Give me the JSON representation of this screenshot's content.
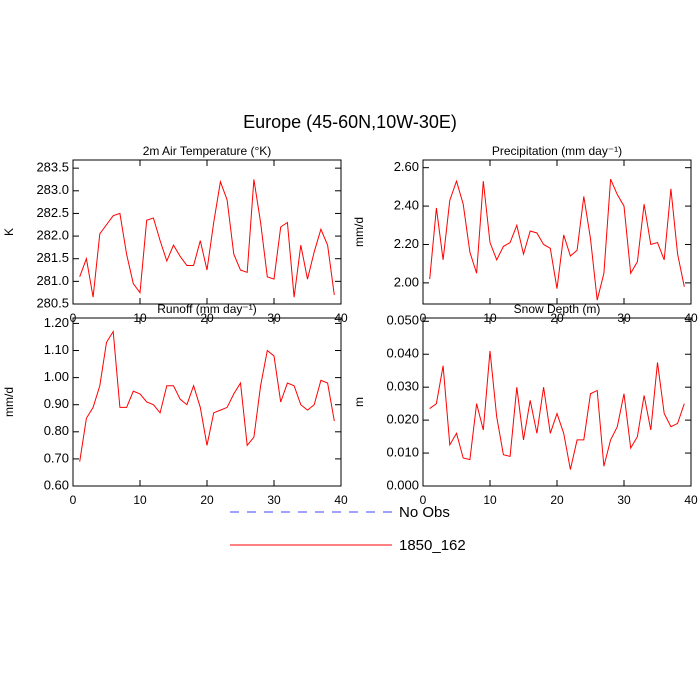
{
  "title": "Europe (45-60N,10W-30E)",
  "legend": [
    {
      "name": "No Obs",
      "color": "#4040ff",
      "dashed": true
    },
    {
      "name": "1850_162",
      "color": "#ff0000",
      "dashed": false
    }
  ],
  "chart_data": [
    {
      "type": "line",
      "title": "2m Air Temperature (°K)",
      "y_label": "K",
      "color": "#ff0000",
      "x": [
        1,
        2,
        3,
        4,
        5,
        6,
        7,
        8,
        9,
        10,
        11,
        12,
        13,
        14,
        15,
        16,
        17,
        18,
        19,
        20,
        21,
        22,
        23,
        24,
        25,
        26,
        27,
        28,
        29,
        30,
        31,
        32,
        33,
        34,
        35,
        36,
        37,
        38,
        39
      ],
      "values": [
        281.1,
        281.5,
        280.65,
        282.05,
        282.25,
        282.45,
        282.5,
        281.6,
        280.95,
        280.75,
        282.35,
        282.4,
        281.9,
        281.45,
        281.8,
        281.55,
        281.35,
        281.35,
        281.9,
        281.25,
        282.3,
        283.2,
        282.8,
        281.6,
        281.25,
        281.2,
        283.25,
        282.3,
        281.1,
        281.05,
        282.2,
        282.3,
        280.65,
        281.8,
        281.05,
        281.65,
        282.15,
        281.8,
        280.7
      ],
      "xlim": [
        0,
        40
      ],
      "xticks": [
        0,
        10,
        20,
        30,
        40
      ],
      "ylim": [
        280.5,
        283.68
      ],
      "yticks": [
        {
          "value": 280.5,
          "label": "280.5"
        },
        {
          "value": 281,
          "label": "281.0"
        },
        {
          "value": 281.5,
          "label": "281.5"
        },
        {
          "value": 282,
          "label": "282.0"
        },
        {
          "value": 282.5,
          "label": "282.5"
        },
        {
          "value": 283,
          "label": "283.0"
        },
        {
          "value": 283.5,
          "label": "283.5"
        }
      ]
    },
    {
      "type": "line",
      "title": "Precipitation (mm day⁻¹)",
      "y_label": "mm/d",
      "color": "#ff0000",
      "x": [
        1,
        2,
        3,
        4,
        5,
        6,
        7,
        8,
        9,
        10,
        11,
        12,
        13,
        14,
        15,
        16,
        17,
        18,
        19,
        20,
        21,
        22,
        23,
        24,
        25,
        26,
        27,
        28,
        29,
        30,
        31,
        32,
        33,
        34,
        35,
        36,
        37,
        38,
        39
      ],
      "values": [
        2.02,
        2.39,
        2.12,
        2.43,
        2.53,
        2.41,
        2.16,
        2.05,
        2.53,
        2.21,
        2.12,
        2.19,
        2.21,
        2.3,
        2.15,
        2.27,
        2.26,
        2.2,
        2.18,
        1.97,
        2.25,
        2.14,
        2.17,
        2.45,
        2.23,
        1.91,
        2.05,
        2.54,
        2.46,
        2.4,
        2.05,
        2.11,
        2.41,
        2.2,
        2.21,
        2.12,
        2.49,
        2.15,
        1.98
      ],
      "xlim": [
        0,
        40
      ],
      "xticks": [
        0,
        10,
        20,
        30,
        40
      ],
      "ylim": [
        1.89,
        2.64
      ],
      "yticks": [
        {
          "value": 2,
          "label": "2.00"
        },
        {
          "value": 2.2,
          "label": "2.20"
        },
        {
          "value": 2.4,
          "label": "2.40"
        },
        {
          "value": 2.6,
          "label": "2.60"
        }
      ]
    },
    {
      "type": "line",
      "title": "Runoff (mm day⁻¹)",
      "y_label": "mm/d",
      "color": "#ff0000",
      "x": [
        1,
        2,
        3,
        4,
        5,
        6,
        7,
        8,
        9,
        10,
        11,
        12,
        13,
        14,
        15,
        16,
        17,
        18,
        19,
        20,
        21,
        22,
        23,
        24,
        25,
        26,
        27,
        28,
        29,
        30,
        31,
        32,
        33,
        34,
        35,
        36,
        37,
        38,
        39
      ],
      "values": [
        0.69,
        0.85,
        0.89,
        0.97,
        1.13,
        1.17,
        0.89,
        0.89,
        0.95,
        0.94,
        0.91,
        0.9,
        0.87,
        0.97,
        0.97,
        0.92,
        0.9,
        0.97,
        0.89,
        0.75,
        0.87,
        0.88,
        0.89,
        0.94,
        0.98,
        0.75,
        0.78,
        0.97,
        1.1,
        1.08,
        0.91,
        0.98,
        0.97,
        0.9,
        0.88,
        0.9,
        0.99,
        0.98,
        0.84
      ],
      "xlim": [
        0,
        40
      ],
      "xticks": [
        0,
        10,
        20,
        30,
        40
      ],
      "ylim": [
        0.6,
        1.22
      ],
      "yticks": [
        {
          "value": 0.6,
          "label": "0.60"
        },
        {
          "value": 0.7,
          "label": "0.70"
        },
        {
          "value": 0.8,
          "label": "0.80"
        },
        {
          "value": 0.9,
          "label": "0.90"
        },
        {
          "value": 1,
          "label": "1.00"
        },
        {
          "value": 1.1,
          "label": "1.10"
        },
        {
          "value": 1.2,
          "label": "1.20"
        }
      ]
    },
    {
      "type": "line",
      "title": "Snow Depth (m)",
      "y_label": "m",
      "color": "#ff0000",
      "x": [
        1,
        2,
        3,
        4,
        5,
        6,
        7,
        8,
        9,
        10,
        11,
        12,
        13,
        14,
        15,
        16,
        17,
        18,
        19,
        20,
        21,
        22,
        23,
        24,
        25,
        26,
        27,
        28,
        29,
        30,
        31,
        32,
        33,
        34,
        35,
        36,
        37,
        38,
        39
      ],
      "values": [
        0.0235,
        0.025,
        0.0365,
        0.0125,
        0.016,
        0.0085,
        0.008,
        0.025,
        0.017,
        0.041,
        0.021,
        0.0095,
        0.009,
        0.03,
        0.014,
        0.026,
        0.016,
        0.03,
        0.016,
        0.022,
        0.016,
        0.005,
        0.014,
        0.014,
        0.028,
        0.029,
        0.006,
        0.014,
        0.018,
        0.028,
        0.0115,
        0.015,
        0.0275,
        0.017,
        0.0375,
        0.022,
        0.018,
        0.019,
        0.025
      ],
      "xlim": [
        0,
        40
      ],
      "xticks": [
        0,
        10,
        20,
        30,
        40
      ],
      "ylim": [
        0,
        0.051
      ],
      "yticks": [
        {
          "value": 0,
          "label": "0.000"
        },
        {
          "value": 0.01,
          "label": "0.010"
        },
        {
          "value": 0.02,
          "label": "0.020"
        },
        {
          "value": 0.03,
          "label": "0.030"
        },
        {
          "value": 0.04,
          "label": "0.040"
        },
        {
          "value": 0.05,
          "label": "0.050"
        }
      ]
    }
  ]
}
